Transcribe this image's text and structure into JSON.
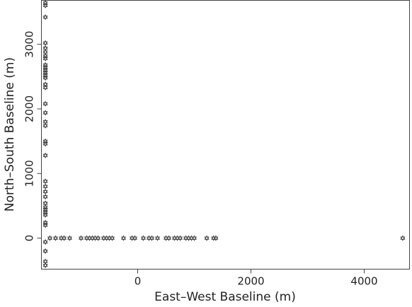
{
  "chart_data": {
    "type": "scatter",
    "title": "",
    "xlabel": "East–West Baseline (m)",
    "ylabel": "North–South Baseline (m)",
    "xlim": [
      -1700,
      4800
    ],
    "ylim": [
      -480,
      3680
    ],
    "xticks": [
      0,
      2000,
      4000
    ],
    "yticks": [
      0,
      1000,
      2000,
      3000
    ],
    "xtick_labels": [
      "0",
      "2000",
      "4000"
    ],
    "ytick_labels": [
      "0",
      "1000",
      "2000",
      "3000"
    ],
    "grid": false,
    "marker": "open-star",
    "series": [
      {
        "points": [
          {
            "x": -1630,
            "y": 3640
          },
          {
            "x": -1630,
            "y": 3600
          },
          {
            "x": -1630,
            "y": 3420
          },
          {
            "x": -1630,
            "y": 3020
          },
          {
            "x": -1630,
            "y": 2940
          },
          {
            "x": -1630,
            "y": 2880
          },
          {
            "x": -1630,
            "y": 2820
          },
          {
            "x": -1630,
            "y": 2780
          },
          {
            "x": -1630,
            "y": 2680
          },
          {
            "x": -1630,
            "y": 2640
          },
          {
            "x": -1630,
            "y": 2600
          },
          {
            "x": -1630,
            "y": 2560
          },
          {
            "x": -1630,
            "y": 2520
          },
          {
            "x": -1630,
            "y": 2480
          },
          {
            "x": -1630,
            "y": 2380
          },
          {
            "x": -1630,
            "y": 2330
          },
          {
            "x": -1630,
            "y": 2080
          },
          {
            "x": -1630,
            "y": 1940
          },
          {
            "x": -1630,
            "y": 1800
          },
          {
            "x": -1630,
            "y": 1740
          },
          {
            "x": -1630,
            "y": 1500
          },
          {
            "x": -1630,
            "y": 1460
          },
          {
            "x": -1630,
            "y": 1280
          },
          {
            "x": -1630,
            "y": 880
          },
          {
            "x": -1630,
            "y": 800
          },
          {
            "x": -1630,
            "y": 720
          },
          {
            "x": -1630,
            "y": 640
          },
          {
            "x": -1630,
            "y": 540
          },
          {
            "x": -1630,
            "y": 480
          },
          {
            "x": -1630,
            "y": 440
          },
          {
            "x": -1630,
            "y": 400
          },
          {
            "x": -1630,
            "y": 360
          },
          {
            "x": -1630,
            "y": 240
          },
          {
            "x": -1630,
            "y": 200
          },
          {
            "x": -1630,
            "y": -60
          },
          {
            "x": -1630,
            "y": -200
          },
          {
            "x": -1630,
            "y": -360
          },
          {
            "x": -1630,
            "y": -420
          },
          {
            "x": -1550,
            "y": 0
          },
          {
            "x": -1450,
            "y": 0
          },
          {
            "x": -1350,
            "y": 0
          },
          {
            "x": -1300,
            "y": 0
          },
          {
            "x": -1200,
            "y": 0
          },
          {
            "x": -1000,
            "y": 0
          },
          {
            "x": -900,
            "y": 0
          },
          {
            "x": -850,
            "y": 0
          },
          {
            "x": -800,
            "y": 0
          },
          {
            "x": -750,
            "y": 0
          },
          {
            "x": -700,
            "y": 0
          },
          {
            "x": -600,
            "y": 0
          },
          {
            "x": -550,
            "y": 0
          },
          {
            "x": -500,
            "y": 0
          },
          {
            "x": -450,
            "y": 0
          },
          {
            "x": -250,
            "y": 0
          },
          {
            "x": -100,
            "y": 0
          },
          {
            "x": -50,
            "y": 0
          },
          {
            "x": 100,
            "y": 0
          },
          {
            "x": 200,
            "y": 0
          },
          {
            "x": 250,
            "y": 0
          },
          {
            "x": 350,
            "y": 0
          },
          {
            "x": 500,
            "y": 0
          },
          {
            "x": 550,
            "y": 0
          },
          {
            "x": 650,
            "y": 0
          },
          {
            "x": 700,
            "y": 0
          },
          {
            "x": 750,
            "y": 0
          },
          {
            "x": 850,
            "y": 0
          },
          {
            "x": 900,
            "y": 0
          },
          {
            "x": 950,
            "y": 0
          },
          {
            "x": 1000,
            "y": 0
          },
          {
            "x": 1220,
            "y": 0
          },
          {
            "x": 1340,
            "y": 0
          },
          {
            "x": 1380,
            "y": 0
          },
          {
            "x": 4680,
            "y": 0
          }
        ]
      }
    ]
  }
}
